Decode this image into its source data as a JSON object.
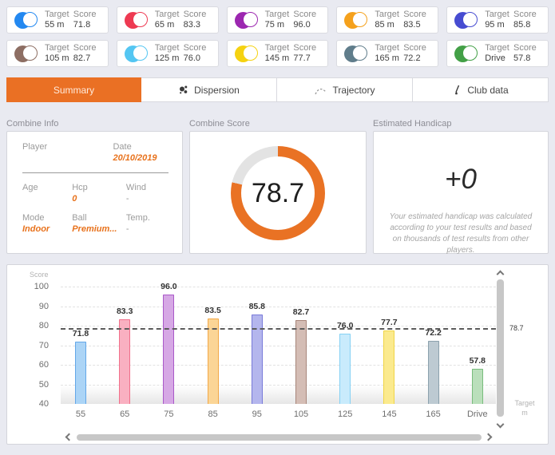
{
  "labels": {
    "target": "Target",
    "score": "Score"
  },
  "target_cards": [
    {
      "target": "55 m",
      "score": "71.8",
      "color": "#2388f0"
    },
    {
      "target": "65 m",
      "score": "83.3",
      "color": "#ee3a52"
    },
    {
      "target": "75 m",
      "score": "96.0",
      "color": "#9c27b0"
    },
    {
      "target": "85 m",
      "score": "83.5",
      "color": "#f5a11c"
    },
    {
      "target": "95 m",
      "score": "85.8",
      "color": "#474cd1"
    },
    {
      "target": "105 m",
      "score": "82.7",
      "color": "#8d6e63"
    },
    {
      "target": "125 m",
      "score": "76.0",
      "color": "#54c6f2"
    },
    {
      "target": "145 m",
      "score": "77.7",
      "color": "#f5d211"
    },
    {
      "target": "165 m",
      "score": "72.2",
      "color": "#607d8b"
    },
    {
      "target": "Drive",
      "score": "57.8",
      "color": "#43a047"
    }
  ],
  "tabs": [
    {
      "label": "Summary",
      "active": true,
      "icon": null
    },
    {
      "label": "Dispersion",
      "active": false,
      "icon": "dispersion-icon"
    },
    {
      "label": "Trajectory",
      "active": false,
      "icon": "trajectory-icon"
    },
    {
      "label": "Club data",
      "active": false,
      "icon": "club-icon"
    }
  ],
  "combine_info": {
    "title": "Combine Info",
    "player": {
      "label": "Player",
      "value": ""
    },
    "date": {
      "label": "Date",
      "value": "20/10/2019"
    },
    "age": {
      "label": "Age",
      "value": ""
    },
    "hcp": {
      "label": "Hcp",
      "value": "0"
    },
    "wind": {
      "label": "Wind",
      "value": "-"
    },
    "mode": {
      "label": "Mode",
      "value": "Indoor"
    },
    "ball": {
      "label": "Ball",
      "value": "Premium..."
    },
    "temp": {
      "label": "Temp.",
      "value": "-"
    }
  },
  "combine_score": {
    "title": "Combine Score",
    "value": "78.7",
    "percent": 78.7,
    "ring_color": "#e97224",
    "track_color": "#e3e3e3"
  },
  "estimated_handicap": {
    "title": "Estimated Handicap",
    "value": "+0",
    "description": "Your estimated handicap was calculated according to your test results and based on thousands of test results from other players."
  },
  "chart_data": {
    "type": "bar",
    "title": "",
    "ylabel": "Score",
    "xlabel_lines": [
      "Target",
      "m"
    ],
    "categories": [
      "55",
      "65",
      "75",
      "85",
      "95",
      "105",
      "125",
      "145",
      "165",
      "Drive"
    ],
    "values": [
      71.8,
      83.3,
      96.0,
      83.5,
      85.8,
      82.7,
      76.0,
      77.7,
      72.2,
      57.8
    ],
    "value_labels": [
      "71.8",
      "83.3",
      "96.0",
      "83.5",
      "85.8",
      "82.7",
      "76.0",
      "77.7",
      "72.2",
      "57.8"
    ],
    "bar_fills": [
      "#abd4f6",
      "#f9b0c1",
      "#d6a8e5",
      "#fbd596",
      "#b4b6ed",
      "#d4bdb5",
      "#c9ebfc",
      "#fbea8e",
      "#bdcad2",
      "#badfbb"
    ],
    "bar_borders": [
      "#63a7e8",
      "#f1708b",
      "#aa59c9",
      "#f2a847",
      "#787ad9",
      "#a8867b",
      "#85d1f4",
      "#f0d546",
      "#8ba1ad",
      "#79bd7d"
    ],
    "ylim": [
      40,
      100
    ],
    "yticks": [
      40,
      50,
      60,
      70,
      80,
      90,
      100
    ],
    "grid": true,
    "legend_position": "none",
    "average_line": {
      "value": 78.7,
      "label": "78.7"
    }
  }
}
